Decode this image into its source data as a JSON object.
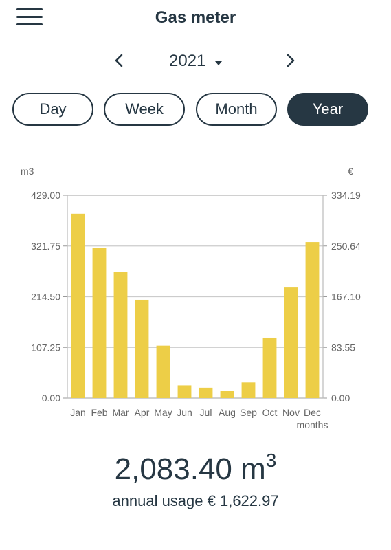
{
  "header": {
    "title": "Gas meter",
    "menu_icon": "hamburger-menu-icon"
  },
  "year_nav": {
    "year": "2021",
    "prev_icon": "chevron-left-icon",
    "next_icon": "chevron-right-icon",
    "caret_icon": "caret-down-icon"
  },
  "tabs": [
    {
      "label": "Day",
      "active": false
    },
    {
      "label": "Week",
      "active": false
    },
    {
      "label": "Month",
      "active": false
    },
    {
      "label": "Year",
      "active": true
    }
  ],
  "colors": {
    "accent": "#263743",
    "bar": "#EDCE47",
    "grid": "#cccccc",
    "axis_text": "#666666"
  },
  "chart_data": {
    "type": "bar",
    "categories": [
      "Jan",
      "Feb",
      "Mar",
      "Apr",
      "May",
      "Jun",
      "Jul",
      "Aug",
      "Sep",
      "Oct",
      "Nov",
      "Dec"
    ],
    "values": [
      390,
      318,
      267,
      208,
      111,
      27,
      22,
      16,
      33,
      128,
      234,
      330
    ],
    "y_left_unit": "m3",
    "y_right_unit": "€",
    "xlabel": "months",
    "ylim": [
      0,
      429
    ],
    "y_left_ticks": [
      "0.00",
      "107.25",
      "214.50",
      "321.75",
      "429.00"
    ],
    "y_right_ticks": [
      "0.00",
      "83.55",
      "167.10",
      "250.64",
      "334.19"
    ],
    "grid": true
  },
  "summary": {
    "value": "2,083.40 m",
    "superscript": "3",
    "subtitle": "annual usage € 1,622.97"
  }
}
